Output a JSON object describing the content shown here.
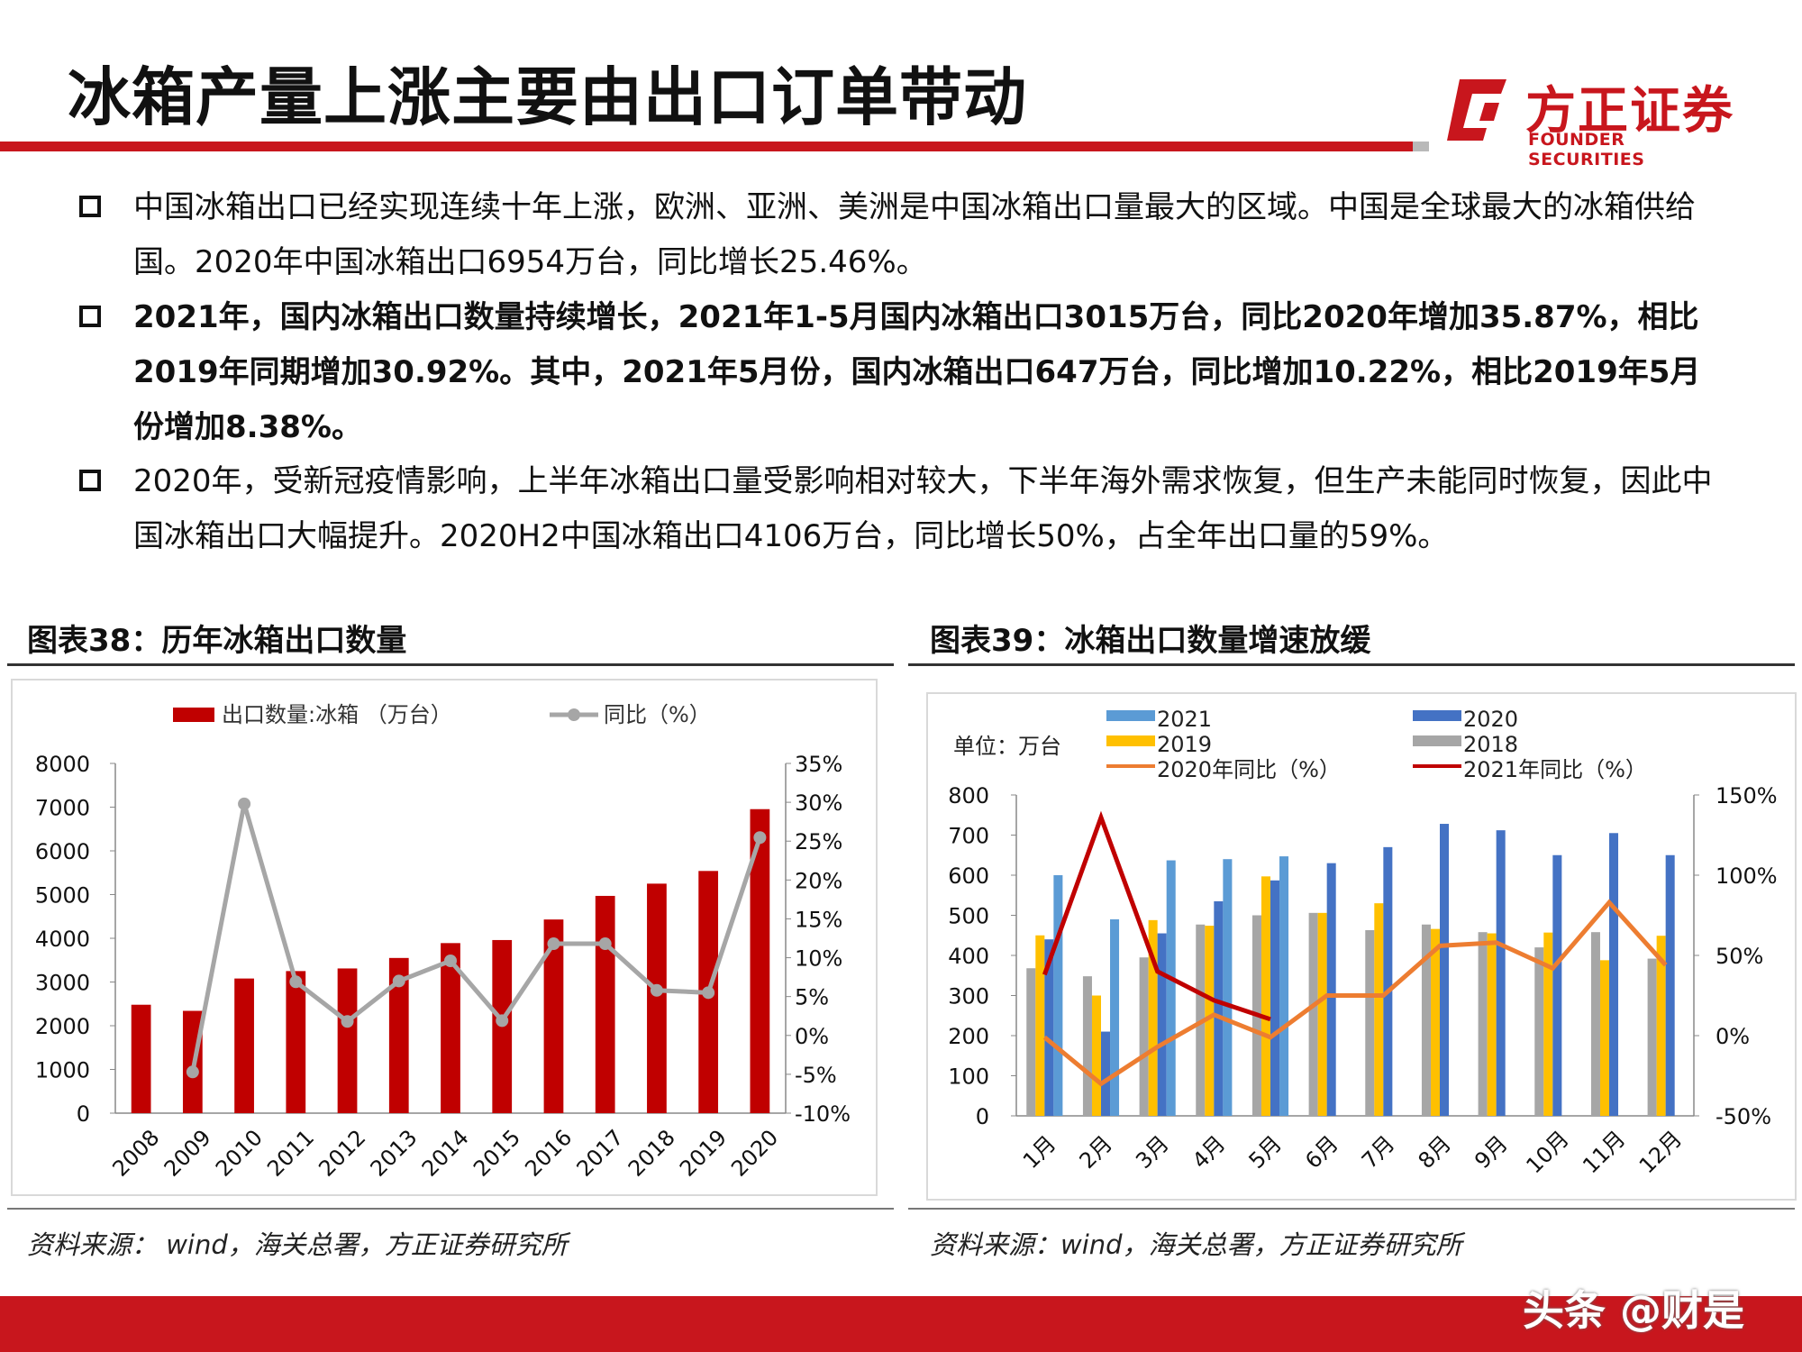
{
  "page": {
    "title": "冰箱产量上涨主要由出口订单带动",
    "logo_cn": "方正证券",
    "logo_en": "FOUNDER SECURITIES",
    "brand_color": "#c8161d",
    "bullets": [
      "中国冰箱出口已经实现连续十年上涨，欧洲、亚洲、美洲是中国冰箱出口量最大的区域。中国是全球最大的冰箱供给国。2020年中国冰箱出口6954万台，同比增长25.46%。",
      "2021年，国内冰箱出口数量持续增长，2021年1-5月国内冰箱出口3015万台，同比2020年增加35.87%，相比2019年同期增加30.92%。其中，2021年5月份，国内冰箱出口647万台，同比增加10.22%，相比2019年5月份增加8.38%。",
      "2020年，受新冠疫情影响，上半年冰箱出口量受影响相对较大，下半年海外需求恢复，但生产未能同时恢复，因此中国冰箱出口大幅提升。2020H2中国冰箱出口4106万台，同比增长50%，占全年出口量的59%。"
    ],
    "chart1_title": "图表38：历年冰箱出口数量",
    "chart2_title": "图表39：冰箱出口数量增速放缓",
    "source1": "资料来源： wind，海关总署，方正证券研究所",
    "source2": "资料来源：wind，海关总署，方正证券研究所",
    "watermark": "头条 @财是"
  },
  "chart_data": [
    {
      "type": "bar",
      "categories": [
        "2008",
        "2009",
        "2010",
        "2011",
        "2012",
        "2013",
        "2014",
        "2015",
        "2016",
        "2017",
        "2018",
        "2019",
        "2020"
      ],
      "series": [
        {
          "name": "出口数量:冰箱 （万台）",
          "type": "bar",
          "axis": "left",
          "color": "#c00000",
          "values": [
            2480,
            2340,
            3080,
            3250,
            3310,
            3550,
            3890,
            3960,
            4430,
            4970,
            5250,
            5540,
            6954
          ]
        },
        {
          "name": "同比（%）",
          "type": "line",
          "axis": "right",
          "color": "#a6a6a6",
          "values": [
            null,
            -4.7,
            29.8,
            6.9,
            1.8,
            7.0,
            9.6,
            1.9,
            11.8,
            11.8,
            5.8,
            5.5,
            25.46
          ]
        }
      ],
      "yleft": {
        "min": 0,
        "max": 8000,
        "ticks": [
          "0",
          "1000",
          "2000",
          "3000",
          "4000",
          "5000",
          "6000",
          "7000",
          "8000"
        ]
      },
      "yright": {
        "min": -10,
        "max": 35,
        "ticks": [
          "-10%",
          "-5%",
          "0%",
          "5%",
          "10%",
          "15%",
          "20%",
          "25%",
          "30%",
          "35%"
        ]
      }
    },
    {
      "type": "bar",
      "unit_label": "单位：万台",
      "categories": [
        "1月",
        "2月",
        "3月",
        "4月",
        "5月",
        "6月",
        "7月",
        "8月",
        "9月",
        "10月",
        "11月",
        "12月"
      ],
      "series": [
        {
          "name": "2018",
          "type": "bar",
          "axis": "left",
          "color": "#a6a6a6",
          "values": [
            368,
            348,
            395,
            477,
            500,
            506,
            463,
            477,
            458,
            420,
            458,
            392
          ]
        },
        {
          "name": "2019",
          "type": "bar",
          "axis": "left",
          "color": "#ffc000",
          "values": [
            450,
            300,
            488,
            474,
            597,
            506,
            530,
            466,
            455,
            457,
            388,
            449
          ]
        },
        {
          "name": "2020",
          "type": "bar",
          "axis": "left",
          "color": "#4472c4",
          "values": [
            440,
            210,
            455,
            535,
            587,
            630,
            670,
            728,
            712,
            650,
            705,
            650
          ]
        },
        {
          "name": "2021",
          "type": "bar",
          "axis": "left",
          "color": "#5b9bd5",
          "values": [
            600,
            490,
            637,
            640,
            647,
            null,
            null,
            null,
            null,
            null,
            null,
            null
          ]
        },
        {
          "name": "2020年同比（%）",
          "type": "line",
          "axis": "right",
          "color": "#ed7d31",
          "values": [
            -1,
            -30,
            -7,
            13,
            -1,
            25,
            25,
            56,
            58,
            42,
            83,
            44
          ]
        },
        {
          "name": "2021年同比（%）",
          "type": "line",
          "axis": "right",
          "color": "#c00000",
          "values": [
            38,
            136,
            40,
            22,
            10.22,
            null,
            null,
            null,
            null,
            null,
            null,
            null
          ]
        }
      ],
      "legend_order": [
        "2021",
        "2020",
        "2019",
        "2018",
        "2020年同比（%）",
        "2021年同比（%）"
      ],
      "yleft": {
        "min": 0,
        "max": 800,
        "ticks": [
          "0",
          "100",
          "200",
          "300",
          "400",
          "500",
          "600",
          "700",
          "800"
        ]
      },
      "yright": {
        "min": -50,
        "max": 150,
        "ticks": [
          "-50%",
          "0%",
          "50%",
          "100%",
          "150%"
        ]
      }
    }
  ]
}
